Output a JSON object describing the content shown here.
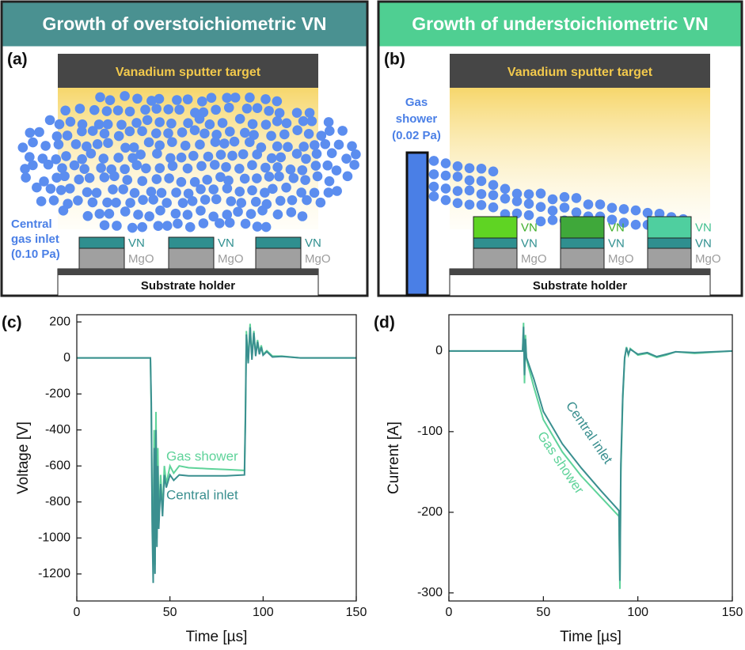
{
  "panels": [
    {
      "label": "(a)",
      "header": "Growth of overstoichiometric VN",
      "target": "Vanadium sputter target",
      "inlet": [
        "Central",
        "gas inlet",
        "(0.10 Pa)"
      ],
      "holder": "Substrate holder",
      "stacks": [
        [
          "VN",
          "MgO"
        ],
        [
          "VN",
          "MgO"
        ],
        [
          "VN",
          "MgO"
        ]
      ]
    },
    {
      "label": "(b)",
      "header": "Growth of understoichiometric VN",
      "target": "Vanadium sputter target",
      "inlet": [
        "Gas",
        "shower",
        "(0.02 Pa)"
      ],
      "holder": "Substrate holder",
      "stacks": [
        [
          "VN",
          "VN",
          "MgO"
        ],
        [
          "VN",
          "VN",
          "MgO"
        ],
        [
          "VN",
          "VN",
          "MgO"
        ]
      ]
    }
  ],
  "chart_data": [
    {
      "type": "line",
      "panel": "(c)",
      "x_label": "Time [µs]",
      "y_label": "Voltage [V]",
      "xlim": [
        0,
        150
      ],
      "xticks": [
        0,
        50,
        100,
        150
      ],
      "ylim": [
        -1350,
        240
      ],
      "yticks": [
        -1200,
        -1000,
        -800,
        -600,
        -400,
        -200,
        0,
        200
      ],
      "series": [
        {
          "name": "Gas shower",
          "color": "#5fd39a",
          "x": [
            0,
            39.5,
            40,
            40.5,
            41,
            41.5,
            42,
            42.5,
            43,
            43.5,
            44,
            45,
            46,
            47,
            48,
            50,
            52,
            55,
            60,
            70,
            80,
            90,
            90.5,
            91,
            92,
            93,
            94,
            95,
            96,
            97,
            98,
            99,
            100,
            102,
            105,
            110,
            120,
            150
          ],
          "values": [
            0,
            0,
            -300,
            -900,
            -1100,
            -400,
            -1150,
            -300,
            -1000,
            -500,
            -900,
            -650,
            -850,
            -600,
            -700,
            -600,
            -640,
            -600,
            -610,
            -615,
            -620,
            -625,
            -300,
            150,
            -20,
            190,
            0,
            150,
            20,
            100,
            30,
            70,
            20,
            40,
            10,
            10,
            0,
            0
          ]
        },
        {
          "name": "Central inlet",
          "color": "#3a8f8f",
          "x": [
            0,
            39.5,
            40,
            40.5,
            41,
            41.5,
            42,
            42.5,
            43,
            43.5,
            44,
            45,
            46,
            47,
            48,
            50,
            52,
            55,
            60,
            70,
            80,
            90,
            90.5,
            91,
            92,
            93,
            94,
            95,
            96,
            97,
            98,
            99,
            100,
            102,
            105,
            110,
            120,
            150
          ],
          "values": [
            0,
            0,
            -250,
            -950,
            -1250,
            -500,
            -1200,
            -400,
            -1050,
            -600,
            -950,
            -700,
            -880,
            -650,
            -720,
            -650,
            -680,
            -650,
            -655,
            -655,
            -655,
            -650,
            -350,
            130,
            -30,
            170,
            -10,
            140,
            10,
            90,
            20,
            60,
            15,
            35,
            5,
            8,
            0,
            0
          ]
        }
      ]
    },
    {
      "type": "line",
      "panel": "(d)",
      "x_label": "Time [µs]",
      "y_label": "Current [A]",
      "xlim": [
        0,
        150
      ],
      "xticks": [
        0,
        50,
        100,
        150
      ],
      "ylim": [
        -310,
        45
      ],
      "yticks": [
        -300,
        -200,
        -100,
        0
      ],
      "series": [
        {
          "name": "Gas shower",
          "color": "#5fd39a",
          "x": [
            0,
            39,
            39.5,
            40,
            40.5,
            41,
            45,
            50,
            60,
            70,
            80,
            90,
            90.5,
            91,
            92,
            93,
            94,
            95,
            96,
            100,
            105,
            110,
            115,
            120,
            130,
            150
          ],
          "values": [
            0,
            0,
            35,
            -40,
            20,
            -10,
            -45,
            -85,
            -125,
            -155,
            -180,
            -205,
            -295,
            -150,
            -60,
            -10,
            5,
            -5,
            3,
            -5,
            -3,
            -8,
            -5,
            -1,
            -3,
            0
          ]
        },
        {
          "name": "Central inlet",
          "color": "#3a8f8f",
          "x": [
            0,
            39,
            39.5,
            40,
            40.5,
            41,
            45,
            50,
            60,
            70,
            80,
            90,
            90.5,
            91,
            92,
            93,
            94,
            95,
            96,
            100,
            105,
            110,
            115,
            120,
            130,
            150
          ],
          "values": [
            0,
            0,
            30,
            -30,
            15,
            -8,
            -35,
            -75,
            -115,
            -145,
            -172,
            -198,
            -285,
            -140,
            -55,
            -8,
            4,
            -4,
            2,
            -4,
            -2,
            -7,
            -4,
            -1,
            -2,
            0
          ]
        }
      ]
    }
  ]
}
